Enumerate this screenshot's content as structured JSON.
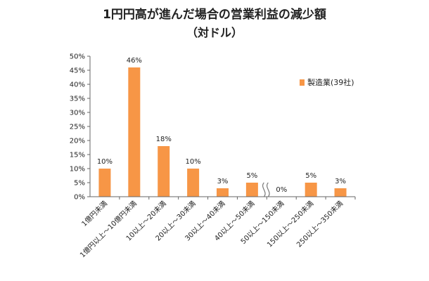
{
  "title": "1円円高が進んだ場合の営業利益の減少額",
  "subtitle": "（対ドル）",
  "chart_data": {
    "type": "bar",
    "title": "1円円高が進んだ場合の営業利益の減少額",
    "subtitle": "（対ドル）",
    "categories": [
      "1億円未満",
      "1億円以上～10億円未満",
      "10以上～20未満",
      "20以上～30未満",
      "30以上～40未満",
      "40以上～50未満",
      "50以上～150未満",
      "150以上～250未満",
      "250以上～350未満"
    ],
    "series": [
      {
        "name": "製造業(39社)",
        "values": [
          10,
          46,
          18,
          10,
          3,
          5,
          0,
          5,
          3
        ],
        "labels": [
          "10%",
          "46%",
          "18%",
          "10%",
          "3%",
          "5%",
          "0%",
          "5%",
          "3%"
        ],
        "color": "#F79646"
      }
    ],
    "yticks": [
      "0%",
      "5%",
      "10%",
      "15%",
      "20%",
      "25%",
      "30%",
      "35%",
      "40%",
      "45%",
      "50%"
    ],
    "ylim": [
      0,
      50
    ],
    "axis_break_after_category": 5,
    "grid": false,
    "legend_position": "right"
  }
}
